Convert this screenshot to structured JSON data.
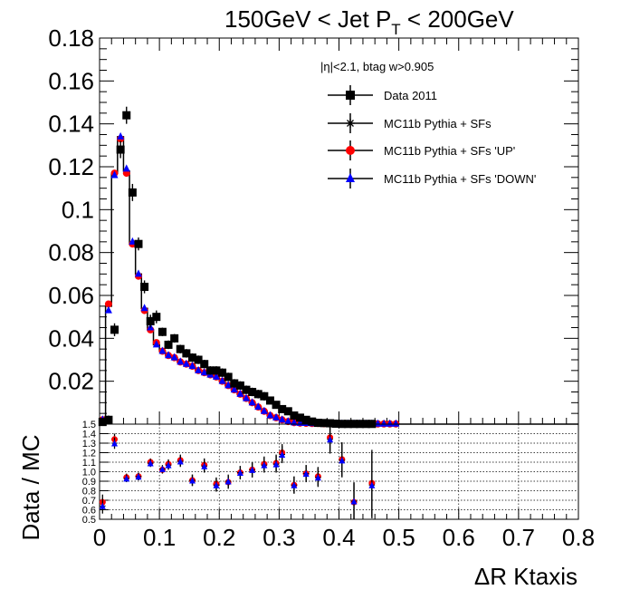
{
  "chart_data": [
    {
      "panel": "main",
      "type": "scatter",
      "title": "150GeV < Jet P",
      "title_sub": "T",
      "title_tail": " < 200GeV",
      "annotation": "|η|<2.1, btag w>0.905",
      "xlim": [
        0,
        0.8
      ],
      "ylim": [
        0,
        0.18
      ],
      "yticks": [
        "0.02",
        "0.04",
        "0.06",
        "0.08",
        "0.1",
        "0.12",
        "0.14",
        "0.16",
        "0.18"
      ],
      "legend_position": "top-right",
      "series": [
        {
          "name": "Data 2011",
          "marker": "square",
          "color": "#000000",
          "x": [
            0.005,
            0.015,
            0.025,
            0.035,
            0.045,
            0.055,
            0.065,
            0.075,
            0.085,
            0.095,
            0.105,
            0.115,
            0.125,
            0.135,
            0.145,
            0.155,
            0.165,
            0.175,
            0.185,
            0.195,
            0.205,
            0.215,
            0.225,
            0.235,
            0.245,
            0.255,
            0.265,
            0.275,
            0.285,
            0.295,
            0.305,
            0.315,
            0.325,
            0.335,
            0.345,
            0.355,
            0.365,
            0.375,
            0.385,
            0.395,
            0.405,
            0.415,
            0.425,
            0.435,
            0.445,
            0.455
          ],
          "y": [
            0.001,
            0.002,
            0.044,
            0.128,
            0.144,
            0.108,
            0.084,
            0.064,
            0.048,
            0.05,
            0.043,
            0.037,
            0.04,
            0.035,
            0.033,
            0.031,
            0.03,
            0.028,
            0.025,
            0.025,
            0.024,
            0.022,
            0.019,
            0.018,
            0.016,
            0.015,
            0.014,
            0.013,
            0.011,
            0.009,
            0.007,
            0.006,
            0.004,
            0.003,
            0.002,
            0.0012,
            0.0006,
            0.0005,
            0.0004,
            0.0002,
            0.0001,
            0.0001,
            0.0001,
            0.0001,
            0.0001,
            0.0001
          ],
          "err": [
            0.001,
            0.002,
            0.003,
            0.004,
            0.004,
            0.004,
            0.003,
            0.003,
            0.003,
            0.003,
            0.002,
            0.002,
            0.002,
            0.002,
            0.002,
            0.002,
            0.002,
            0.002,
            0.002,
            0.002,
            0.002,
            0.002,
            0.002,
            0.002,
            0.002,
            0.002,
            0.002,
            0.002,
            0.0015,
            0.0015,
            0.0012,
            0.0012,
            0.001,
            0.001,
            0.0008,
            0.0006,
            0.0005,
            0.0004,
            0.0004,
            0.0003,
            0.0002,
            0.0002,
            0.0002,
            0.0002,
            0.0002,
            0.0002
          ]
        },
        {
          "name": "MC11b Pythia + SFs",
          "marker": "star",
          "color": "#000000",
          "x": [
            0.005,
            0.015,
            0.025,
            0.035,
            0.045,
            0.055,
            0.065,
            0.075,
            0.085,
            0.095,
            0.105,
            0.115,
            0.125,
            0.135,
            0.145,
            0.155,
            0.165,
            0.175,
            0.185,
            0.195,
            0.205,
            0.215,
            0.225,
            0.235,
            0.245,
            0.255,
            0.265,
            0.275,
            0.285,
            0.295,
            0.305,
            0.315,
            0.325,
            0.335,
            0.345,
            0.355,
            0.365,
            0.375,
            0.385,
            0.395,
            0.405,
            0.415,
            0.425,
            0.435,
            0.445,
            0.455,
            0.465,
            0.475,
            0.485,
            0.495
          ],
          "y": [
            0.002,
            0.055,
            0.117,
            0.134,
            0.118,
            0.084,
            0.07,
            0.054,
            0.044,
            0.037,
            0.034,
            0.032,
            0.031,
            0.029,
            0.028,
            0.027,
            0.025,
            0.024,
            0.023,
            0.022,
            0.02,
            0.018,
            0.016,
            0.014,
            0.012,
            0.01,
            0.008,
            0.006,
            0.004,
            0.003,
            0.002,
            0.0012,
            0.0007,
            0.0005,
            0.0004,
            0.0003,
            0.0003,
            0.0002,
            0.0002,
            0.0001,
            0.0001,
            0.0001,
            0.0001,
            0.0001,
            0.0001,
            0.0001,
            0.0001,
            0.0001,
            0.0001,
            0.0001
          ]
        },
        {
          "name": "MC11b Pythia + SFs 'UP'",
          "marker": "circle",
          "color": "#ff0000",
          "x": [
            0.005,
            0.015,
            0.025,
            0.035,
            0.045,
            0.055,
            0.065,
            0.075,
            0.085,
            0.095,
            0.105,
            0.115,
            0.125,
            0.135,
            0.145,
            0.155,
            0.165,
            0.175,
            0.185,
            0.195,
            0.205,
            0.215,
            0.225,
            0.235,
            0.245,
            0.255,
            0.265,
            0.275,
            0.285,
            0.295,
            0.305,
            0.315,
            0.325,
            0.335,
            0.345,
            0.355,
            0.365,
            0.375,
            0.385,
            0.395,
            0.405,
            0.415,
            0.425,
            0.435,
            0.445,
            0.455,
            0.465,
            0.475,
            0.485,
            0.495
          ],
          "y": [
            0.002,
            0.056,
            0.117,
            0.133,
            0.117,
            0.084,
            0.069,
            0.053,
            0.044,
            0.038,
            0.034,
            0.032,
            0.031,
            0.029,
            0.028,
            0.027,
            0.025,
            0.024,
            0.023,
            0.022,
            0.02,
            0.018,
            0.016,
            0.014,
            0.012,
            0.01,
            0.008,
            0.006,
            0.004,
            0.003,
            0.002,
            0.0012,
            0.0007,
            0.0005,
            0.0004,
            0.0003,
            0.0003,
            0.0002,
            0.0002,
            0.0001,
            0.0001,
            0.0001,
            0.0001,
            0.0001,
            0.0001,
            0.0001,
            0.0001,
            0.0001,
            0.0001,
            0.0001
          ]
        },
        {
          "name": "MC11b Pythia + SFs 'DOWN'",
          "marker": "triangle",
          "color": "#0000ff",
          "x": [
            0.005,
            0.015,
            0.025,
            0.035,
            0.045,
            0.055,
            0.065,
            0.075,
            0.085,
            0.095,
            0.105,
            0.115,
            0.125,
            0.135,
            0.145,
            0.155,
            0.165,
            0.175,
            0.185,
            0.195,
            0.205,
            0.215,
            0.225,
            0.235,
            0.245,
            0.255,
            0.265,
            0.275,
            0.285,
            0.295,
            0.305,
            0.315,
            0.325,
            0.335,
            0.345,
            0.355,
            0.365,
            0.375,
            0.385,
            0.395,
            0.405,
            0.415,
            0.425,
            0.435,
            0.445,
            0.455,
            0.465,
            0.475,
            0.485,
            0.495
          ],
          "y": [
            0.002,
            0.053,
            0.116,
            0.134,
            0.119,
            0.085,
            0.07,
            0.054,
            0.045,
            0.037,
            0.034,
            0.032,
            0.031,
            0.029,
            0.028,
            0.027,
            0.025,
            0.024,
            0.023,
            0.022,
            0.02,
            0.018,
            0.016,
            0.014,
            0.012,
            0.01,
            0.008,
            0.006,
            0.004,
            0.003,
            0.002,
            0.0012,
            0.0007,
            0.0005,
            0.0004,
            0.0003,
            0.0003,
            0.0002,
            0.0002,
            0.0001,
            0.0001,
            0.0001,
            0.0001,
            0.0001,
            0.0001,
            0.0001,
            0.0001,
            0.0001,
            0.0001,
            0.0001
          ]
        }
      ]
    },
    {
      "panel": "ratio",
      "type": "scatter",
      "xlabel": "ΔR Ktaxis",
      "ylabel": "Data / MC",
      "xlim": [
        0,
        0.8
      ],
      "ylim": [
        0.5,
        1.5
      ],
      "xticks": [
        "0",
        "0.1",
        "0.2",
        "0.3",
        "0.4",
        "0.5",
        "0.6",
        "0.7",
        "0.8"
      ],
      "yticks": [
        "0.5",
        "0.6",
        "0.7",
        "0.8",
        "0.9",
        "1.0",
        "1.1",
        "1.2",
        "1.3",
        "1.4",
        "1.5"
      ],
      "grid": true,
      "series": [
        {
          "name": "MC11b Pythia + SFs 'UP'",
          "color": "#ff0000",
          "x": [
            0.005,
            0.025,
            0.045,
            0.065,
            0.085,
            0.105,
            0.115,
            0.135,
            0.155,
            0.175,
            0.195,
            0.215,
            0.235,
            0.255,
            0.275,
            0.295,
            0.305,
            0.325,
            0.345,
            0.365,
            0.385,
            0.405,
            0.425,
            0.455
          ],
          "y": [
            0.68,
            1.34,
            0.94,
            0.95,
            1.1,
            1.02,
            1.08,
            1.12,
            0.91,
            1.07,
            0.87,
            0.89,
            0.99,
            1.02,
            1.08,
            1.09,
            1.2,
            0.86,
            0.98,
            0.95,
            1.36,
            1.13,
            0.68,
            0.88
          ],
          "err": [
            0.08,
            0.06,
            0.04,
            0.04,
            0.04,
            0.04,
            0.05,
            0.06,
            0.06,
            0.07,
            0.07,
            0.07,
            0.07,
            0.08,
            0.08,
            0.09,
            0.09,
            0.09,
            0.09,
            0.1,
            0.15,
            0.18,
            0.2,
            0.35
          ]
        },
        {
          "name": "MC11b Pythia + SFs 'DOWN'",
          "color": "#0000ff",
          "x": [
            0.005,
            0.025,
            0.045,
            0.065,
            0.085,
            0.105,
            0.115,
            0.135,
            0.155,
            0.175,
            0.195,
            0.215,
            0.235,
            0.255,
            0.275,
            0.295,
            0.305,
            0.325,
            0.345,
            0.365,
            0.385,
            0.405,
            0.425,
            0.455
          ],
          "y": [
            0.64,
            1.3,
            0.93,
            0.95,
            1.09,
            1.03,
            1.07,
            1.11,
            0.91,
            1.06,
            0.86,
            0.9,
            0.99,
            1.02,
            1.07,
            1.08,
            1.18,
            0.86,
            0.98,
            0.94,
            1.34,
            1.12,
            0.69,
            0.86
          ],
          "err": [
            0.08,
            0.06,
            0.04,
            0.04,
            0.04,
            0.04,
            0.05,
            0.06,
            0.06,
            0.07,
            0.07,
            0.07,
            0.07,
            0.08,
            0.08,
            0.09,
            0.09,
            0.09,
            0.09,
            0.1,
            0.15,
            0.18,
            0.2,
            0.35
          ]
        }
      ]
    }
  ]
}
